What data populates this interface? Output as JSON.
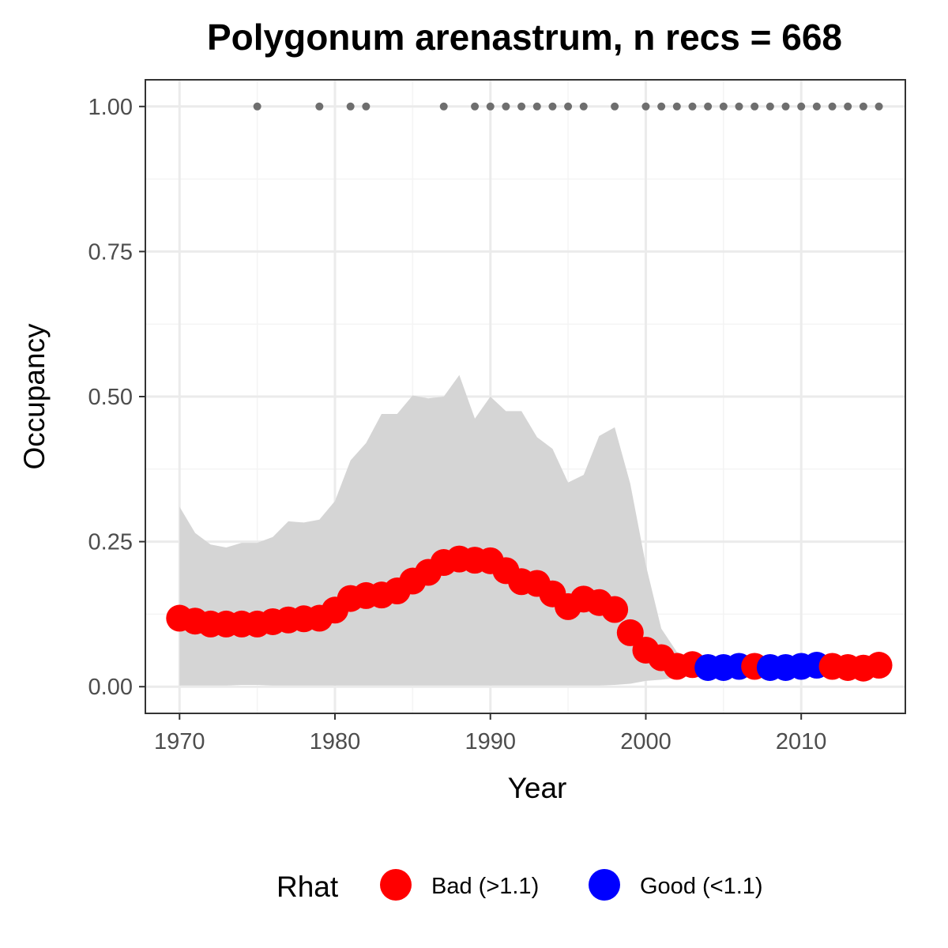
{
  "chart_data": {
    "type": "line",
    "title": "Polygonum arenastrum, n recs = 668",
    "xlabel": "Year",
    "ylabel": "Occupancy",
    "xlim": [
      1967.8,
      2016.7
    ],
    "ylim": [
      -0.046,
      1.046
    ],
    "x_ticks": [
      1970,
      1980,
      1990,
      2000,
      2010
    ],
    "x_tick_labels": [
      "1970",
      "1980",
      "1990",
      "2000",
      "2010"
    ],
    "y_ticks": [
      0.0,
      0.25,
      0.5,
      0.75,
      1.0
    ],
    "y_tick_labels": [
      "0.00",
      "0.25",
      "0.50",
      "0.75",
      "1.00"
    ],
    "grid": true,
    "years": [
      1970,
      1971,
      1972,
      1973,
      1974,
      1975,
      1976,
      1977,
      1978,
      1979,
      1980,
      1981,
      1982,
      1983,
      1984,
      1985,
      1986,
      1987,
      1988,
      1989,
      1990,
      1991,
      1992,
      1993,
      1994,
      1995,
      1996,
      1997,
      1998,
      1999,
      2000,
      2001,
      2002,
      2003,
      2004,
      2005,
      2006,
      2007,
      2008,
      2009,
      2010,
      2011,
      2012,
      2013,
      2014,
      2015
    ],
    "occupancy": [
      0.118,
      0.113,
      0.108,
      0.108,
      0.108,
      0.108,
      0.112,
      0.115,
      0.117,
      0.118,
      0.132,
      0.152,
      0.157,
      0.158,
      0.165,
      0.182,
      0.197,
      0.214,
      0.22,
      0.218,
      0.217,
      0.2,
      0.181,
      0.178,
      0.16,
      0.138,
      0.151,
      0.145,
      0.133,
      0.093,
      0.063,
      0.05,
      0.035,
      0.038,
      0.033,
      0.033,
      0.035,
      0.035,
      0.033,
      0.033,
      0.035,
      0.037,
      0.035,
      0.033,
      0.032,
      0.037
    ],
    "rhat_status": [
      "Bad",
      "Bad",
      "Bad",
      "Bad",
      "Bad",
      "Bad",
      "Bad",
      "Bad",
      "Bad",
      "Bad",
      "Bad",
      "Bad",
      "Bad",
      "Bad",
      "Bad",
      "Bad",
      "Bad",
      "Bad",
      "Bad",
      "Bad",
      "Bad",
      "Bad",
      "Bad",
      "Bad",
      "Bad",
      "Bad",
      "Bad",
      "Bad",
      "Bad",
      "Bad",
      "Bad",
      "Bad",
      "Bad",
      "Bad",
      "Good",
      "Good",
      "Good",
      "Bad",
      "Good",
      "Good",
      "Good",
      "Good",
      "Bad",
      "Bad",
      "Bad",
      "Bad"
    ],
    "ci_upper": [
      0.31,
      0.265,
      0.245,
      0.24,
      0.248,
      0.248,
      0.258,
      0.285,
      0.283,
      0.288,
      0.32,
      0.39,
      0.42,
      0.47,
      0.47,
      0.502,
      0.497,
      0.5,
      0.537,
      0.462,
      0.5,
      0.475,
      0.475,
      0.43,
      0.41,
      0.352,
      0.365,
      0.432,
      0.447,
      0.35,
      0.21,
      0.1,
      0.06,
      0.05,
      0.045,
      0.045,
      0.045,
      0.045,
      0.045,
      0.045,
      0.045,
      0.045,
      0.045,
      0.045,
      0.045,
      0.045
    ],
    "ci_lower": [
      0.002,
      0.002,
      0.002,
      0.002,
      0.003,
      0.003,
      0.002,
      0.002,
      0.002,
      0.002,
      0.002,
      0.002,
      0.002,
      0.002,
      0.002,
      0.002,
      0.002,
      0.002,
      0.002,
      0.002,
      0.002,
      0.002,
      0.002,
      0.002,
      0.002,
      0.002,
      0.002,
      0.002,
      0.003,
      0.005,
      0.01,
      0.012,
      0.015,
      0.018,
      0.02,
      0.02,
      0.02,
      0.02,
      0.02,
      0.02,
      0.02,
      0.02,
      0.02,
      0.02,
      0.02,
      0.02
    ],
    "record_years": [
      1975,
      1979,
      1981,
      1982,
      1987,
      1989,
      1990,
      1991,
      1992,
      1993,
      1994,
      1995,
      1996,
      1998,
      2000,
      2001,
      2002,
      2003,
      2004,
      2005,
      2006,
      2007,
      2008,
      2009,
      2010,
      2011,
      2012,
      2013,
      2014,
      2015
    ],
    "record_value": 1.0,
    "legend": {
      "title": "Rhat",
      "position": "bottom",
      "items": [
        {
          "key": "Bad",
          "label": "Bad (>1.1)",
          "color": "#ff0000"
        },
        {
          "key": "Good",
          "label": "Good (<1.1)",
          "color": "#0000ff"
        }
      ]
    },
    "colors": {
      "ribbon": "#d5d5d5",
      "records": "#6e6e6e",
      "grid_major": "#ebebeb",
      "grid_minor": "#f4f4f4",
      "border": "#333333"
    }
  }
}
